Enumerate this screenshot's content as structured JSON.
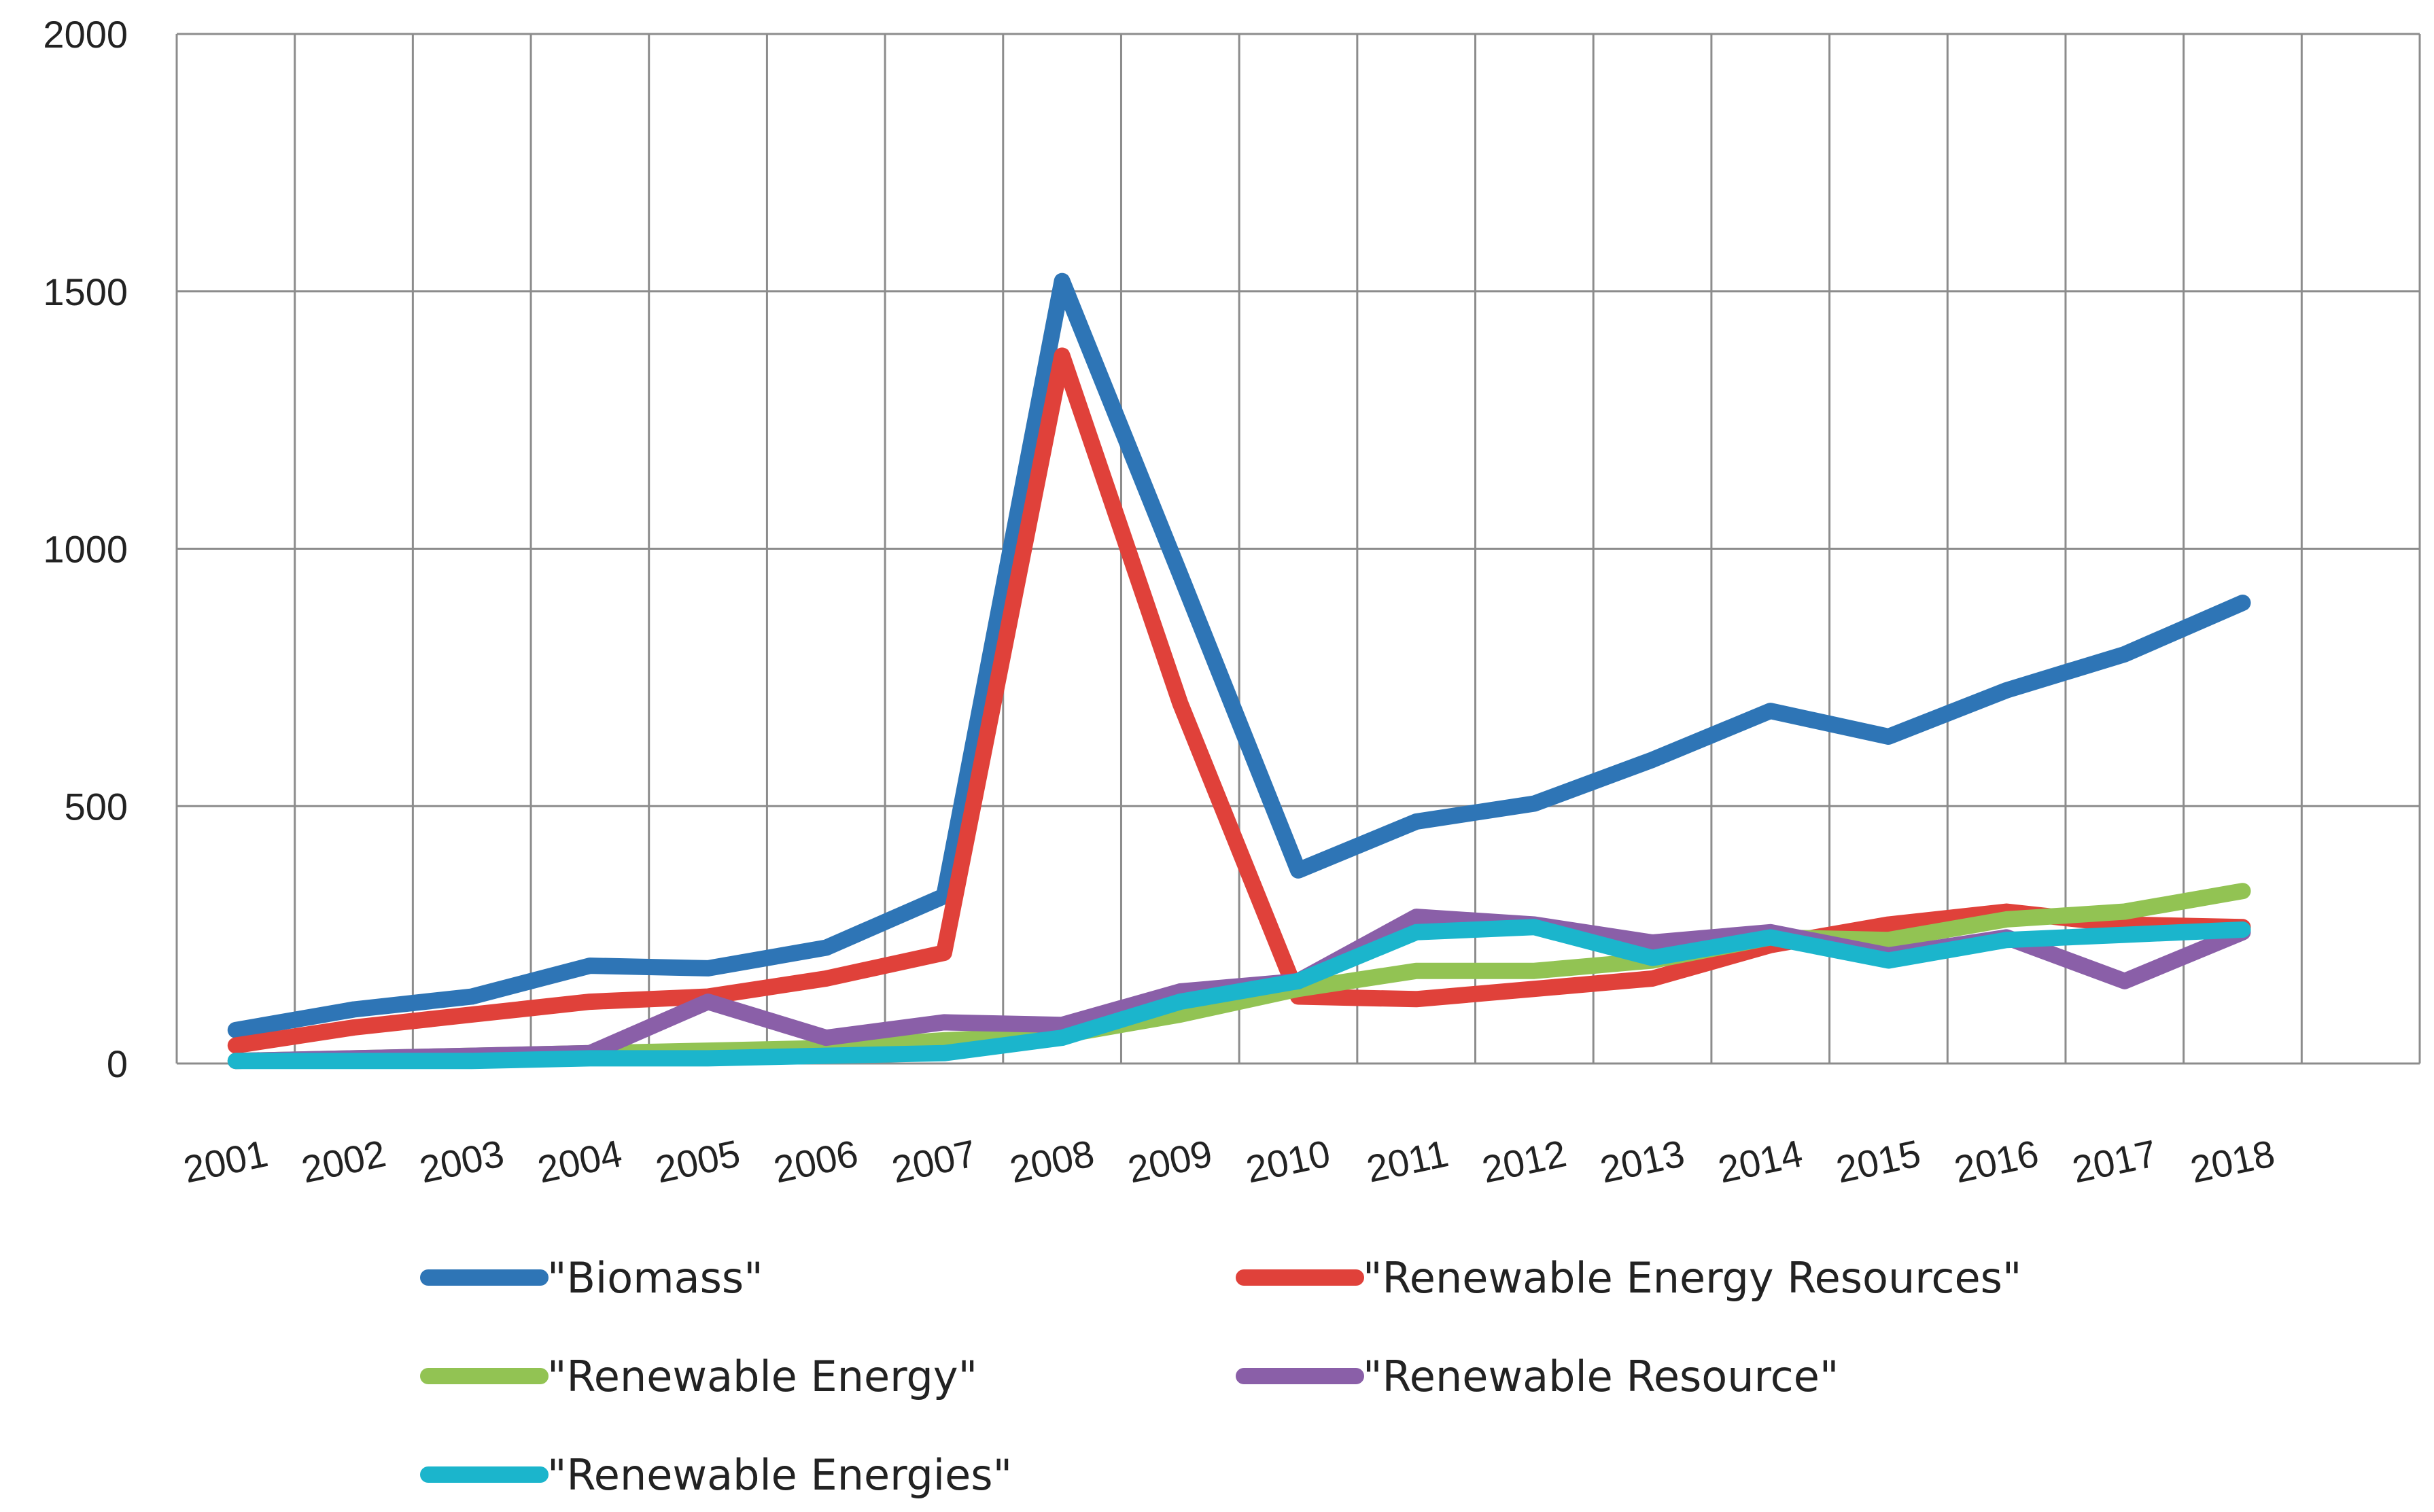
{
  "chart_data": {
    "type": "line",
    "title": "",
    "xlabel": "",
    "ylabel": "",
    "ylim": [
      0,
      2000
    ],
    "yticks": [
      0,
      500,
      1000,
      1500,
      2000
    ],
    "grid": true,
    "legend_position": "bottom",
    "categories": [
      "2001",
      "2002",
      "2003",
      "2004",
      "2005",
      "2006",
      "2007",
      "2008",
      "2009",
      "2010",
      "2011",
      "2012",
      "2013",
      "2014",
      "2015",
      "2016",
      "2017",
      "2018"
    ],
    "series": [
      {
        "name": "\"Biomass\"",
        "color": "#2e75b6",
        "values": [
          65,
          105,
          130,
          190,
          185,
          225,
          325,
          1520,
          950,
          375,
          470,
          505,
          590,
          685,
          635,
          725,
          795,
          895
        ]
      },
      {
        "name": "\"Renewable Energy Resources\"",
        "color": "#e0413a",
        "values": [
          35,
          70,
          95,
          120,
          130,
          165,
          215,
          1375,
          700,
          130,
          125,
          145,
          165,
          230,
          270,
          295,
          270,
          265
        ]
      },
      {
        "name": "\"Renewable Energy\"",
        "color": "#92c353",
        "values": [
          5,
          10,
          15,
          20,
          25,
          30,
          45,
          55,
          95,
          145,
          180,
          180,
          200,
          245,
          240,
          280,
          295,
          335
        ]
      },
      {
        "name": "\"Renewable Resource\"",
        "color": "#8a5fa8",
        "values": [
          5,
          10,
          15,
          20,
          120,
          50,
          80,
          75,
          140,
          160,
          285,
          270,
          235,
          255,
          210,
          245,
          160,
          255
        ]
      },
      {
        "name": "\"Renewable Energies\"",
        "color": "#1bb5cc",
        "values": [
          5,
          5,
          5,
          10,
          10,
          15,
          20,
          50,
          120,
          160,
          255,
          265,
          205,
          245,
          200,
          240,
          250,
          260
        ]
      }
    ]
  }
}
